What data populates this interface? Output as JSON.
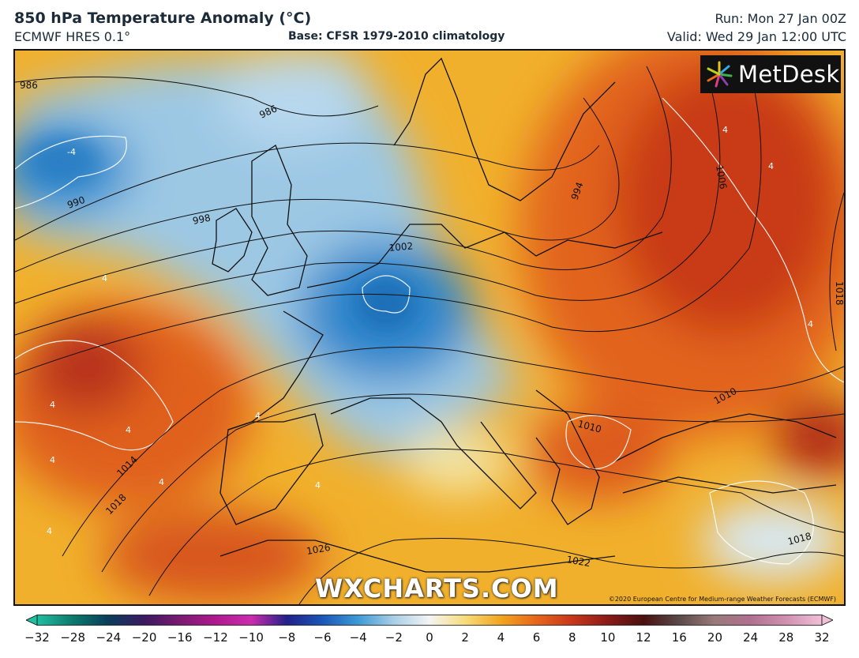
{
  "header": {
    "title": "850 hPa Temperature Anomaly (°C)",
    "model": "ECMWF HRES 0.1°",
    "base": "Base: CFSR 1979-2010 climatology",
    "run": "Run: Mon 27 Jan 00Z",
    "valid": "Valid: Wed 29 Jan 12:00 UTC"
  },
  "logo": {
    "text": "MetDesk"
  },
  "watermark": "WXCHARTS.COM",
  "credit": "©2020 European Centre for Medium-range Weather Forecasts (ECMWF)",
  "isobar_labels": [
    "986",
    "986",
    "990",
    "998",
    "1002",
    "994",
    "1006",
    "1018",
    "1010",
    "1010",
    "1014",
    "1018",
    "1026",
    "1022",
    "1018"
  ],
  "anomaly_labels": [
    "-4",
    "4",
    "4",
    "4",
    "4",
    "4",
    "4",
    "4",
    "4",
    "4",
    "4",
    "4"
  ],
  "colorbar": {
    "ticks": [
      "-32",
      "-28",
      "-24",
      "-20",
      "-16",
      "-12",
      "-10",
      "-8",
      "-6",
      "-4",
      "-2",
      "0",
      "2",
      "4",
      "6",
      "8",
      "10",
      "12",
      "16",
      "20",
      "24",
      "28",
      "32"
    ],
    "colors": [
      "#1fbf9f",
      "#0c7a6c",
      "#0a3d5a",
      "#3a1a60",
      "#7a1a70",
      "#b0188f",
      "#cc2cae",
      "#22208a",
      "#1a56b8",
      "#3d9ad6",
      "#a9cfe6",
      "#f4f4f4",
      "#f7dc7a",
      "#f2a51f",
      "#e8651b",
      "#c8361a",
      "#8c1a1a",
      "#4a1010",
      "#5a4a4a",
      "#9a7a7a",
      "#b07090",
      "#d090b0",
      "#f0c0d8"
    ]
  }
}
